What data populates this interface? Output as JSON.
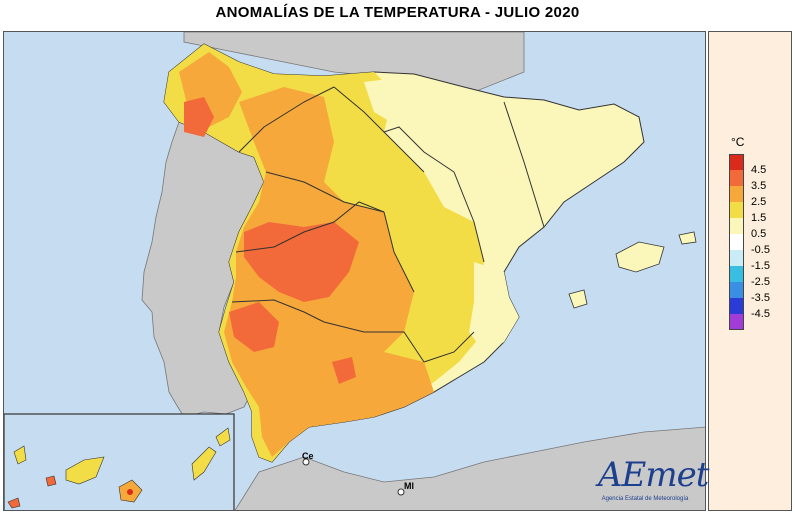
{
  "title": "ANOMALÍAS DE LA TEMPERATURA - JULIO 2020",
  "legend": {
    "unit": "°C",
    "classes": [
      {
        "label": "4.5",
        "color": "#d92a1c"
      },
      {
        "label": "3.5",
        "color": "#f2693a"
      },
      {
        "label": "2.5",
        "color": "#f6a83b"
      },
      {
        "label": "1.5",
        "color": "#f2dd47"
      },
      {
        "label": "0.5",
        "color": "#fbf6b9"
      },
      {
        "label": "-0.5",
        "color": "#ffffff"
      },
      {
        "label": "-1.5",
        "color": "#c9ecf7"
      },
      {
        "label": "-2.5",
        "color": "#38bde3"
      },
      {
        "label": "-3.5",
        "color": "#3a8ee4"
      },
      {
        "label": "-4.5",
        "color": "#2a3bd6"
      },
      {
        "label": "",
        "color": "#a23cd9"
      }
    ]
  },
  "cities": {
    "ceuta": "Ce",
    "melilla": "Ml"
  },
  "logo": {
    "text": "AEmet",
    "subtitle": "Agencia Estatal de Meteorología"
  },
  "colors": {
    "sea": "#c6dcf1",
    "land_other": "#c9c9c9",
    "border": "#333333"
  }
}
